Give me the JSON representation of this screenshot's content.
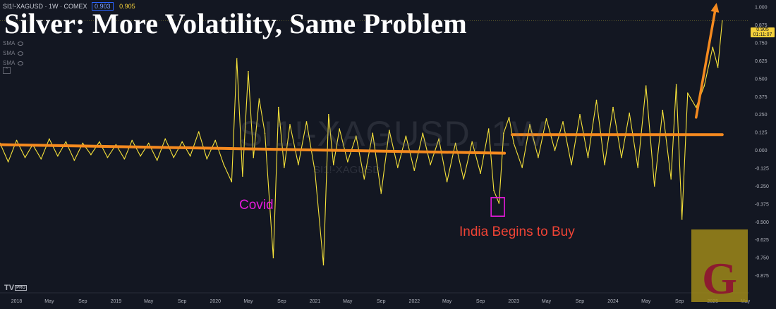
{
  "title": "Silver: More Volatility, Same Problem",
  "header": {
    "symbol": "SI1!-XAGUSD · 1W · COMEX",
    "value_box": "0.903",
    "last_value": "0.905"
  },
  "indicators": [
    "SMA",
    "SMA",
    "SMA"
  ],
  "watermark": {
    "main": "SI1!-XAGUSD, 1W",
    "sub": "SI1!-XAGUSD"
  },
  "annotations": {
    "covid": "Covid",
    "india": "India Begins to Buy"
  },
  "branding": {
    "tv_logo": "TV",
    "tv_pro": "PRO",
    "logo_letter": "G"
  },
  "price_badge": {
    "value": "0.905",
    "countdown": "01:11:07"
  },
  "colors": {
    "background": "#131722",
    "series": "#f6e23a",
    "trend": "#f58a1f",
    "covid": "#e31ad8",
    "india": "#ef4335",
    "logo_bg": "#a48c18",
    "logo_letter": "#8d1b2f"
  },
  "chart_data": {
    "type": "line",
    "title": "Silver: More Volatility, Same Problem",
    "series_label": "SI1!-XAGUSD",
    "x_unit": "date",
    "x_range": [
      "2017-11-01",
      "2025-05-15"
    ],
    "y_range": [
      -0.99,
      1.05
    ],
    "grid": false,
    "y_ticks": [
      1.0,
      0.875,
      0.75,
      0.625,
      0.5,
      0.375,
      0.25,
      0.125,
      0.0,
      -0.125,
      -0.25,
      -0.375,
      -0.5,
      -0.625,
      -0.75,
      -0.875
    ],
    "y_tick_labels": [
      "1.000",
      "0.875",
      "0.750",
      "0.625",
      "0.500",
      "0.375",
      "0.250",
      "0.125",
      "0.000",
      "-0.125",
      "-0.250",
      "-0.375",
      "-0.500",
      "-0.625",
      "-0.750",
      "-0.875"
    ],
    "x_ticks": [
      {
        "label": "2018",
        "date": "2018-01-01"
      },
      {
        "label": "May",
        "date": "2018-05-01"
      },
      {
        "label": "Sep",
        "date": "2018-09-01"
      },
      {
        "label": "2019",
        "date": "2019-01-01"
      },
      {
        "label": "May",
        "date": "2019-05-01"
      },
      {
        "label": "Sep",
        "date": "2019-09-01"
      },
      {
        "label": "2020",
        "date": "2020-01-01"
      },
      {
        "label": "May",
        "date": "2020-05-01"
      },
      {
        "label": "Sep",
        "date": "2020-09-01"
      },
      {
        "label": "2021",
        "date": "2021-01-01"
      },
      {
        "label": "May",
        "date": "2021-05-01"
      },
      {
        "label": "Sep",
        "date": "2021-09-01"
      },
      {
        "label": "2022",
        "date": "2022-01-01"
      },
      {
        "label": "May",
        "date": "2022-05-01"
      },
      {
        "label": "Sep",
        "date": "2022-09-01"
      },
      {
        "label": "2023",
        "date": "2023-01-01"
      },
      {
        "label": "May",
        "date": "2023-05-01"
      },
      {
        "label": "Sep",
        "date": "2023-09-01"
      },
      {
        "label": "2024",
        "date": "2024-01-01"
      },
      {
        "label": "May",
        "date": "2024-05-01"
      },
      {
        "label": "Sep",
        "date": "2024-09-01"
      },
      {
        "label": "2025",
        "date": "2025-01-01"
      },
      {
        "label": "May",
        "date": "2025-05-01"
      }
    ],
    "trend_lines": [
      {
        "from": {
          "date": "2017-11-01",
          "value": 0.04
        },
        "to": {
          "date": "2022-11-28",
          "value": -0.02
        }
      },
      {
        "from": {
          "date": "2022-12-26",
          "value": 0.11
        },
        "to": {
          "date": "2025-02-05",
          "value": 0.11
        }
      }
    ],
    "arrow": {
      "from": {
        "date": "2024-11-01",
        "value": 0.23
      },
      "to": {
        "date": "2025-01-15",
        "value": 1.03
      }
    },
    "highlight_box": {
      "date_from": "2022-10-10",
      "date_to": "2022-11-28",
      "value_top": -0.33,
      "value_bottom": -0.46
    },
    "last_value": 0.905,
    "series": [
      {
        "date": "2017-11-01",
        "value": 0.05
      },
      {
        "date": "2017-12-01",
        "value": -0.08
      },
      {
        "date": "2018-01-01",
        "value": 0.07
      },
      {
        "date": "2018-02-01",
        "value": -0.05
      },
      {
        "date": "2018-03-01",
        "value": 0.04
      },
      {
        "date": "2018-04-01",
        "value": -0.06
      },
      {
        "date": "2018-05-01",
        "value": 0.08
      },
      {
        "date": "2018-06-01",
        "value": -0.04
      },
      {
        "date": "2018-07-01",
        "value": 0.06
      },
      {
        "date": "2018-08-01",
        "value": -0.07
      },
      {
        "date": "2018-09-01",
        "value": 0.05
      },
      {
        "date": "2018-10-01",
        "value": -0.03
      },
      {
        "date": "2018-11-01",
        "value": 0.06
      },
      {
        "date": "2018-12-01",
        "value": -0.05
      },
      {
        "date": "2019-01-01",
        "value": 0.04
      },
      {
        "date": "2019-02-01",
        "value": -0.06
      },
      {
        "date": "2019-03-01",
        "value": 0.07
      },
      {
        "date": "2019-04-01",
        "value": -0.04
      },
      {
        "date": "2019-05-01",
        "value": 0.05
      },
      {
        "date": "2019-06-01",
        "value": -0.07
      },
      {
        "date": "2019-07-01",
        "value": 0.08
      },
      {
        "date": "2019-08-01",
        "value": -0.05
      },
      {
        "date": "2019-09-01",
        "value": 0.06
      },
      {
        "date": "2019-10-01",
        "value": -0.04
      },
      {
        "date": "2019-11-01",
        "value": 0.13
      },
      {
        "date": "2019-12-01",
        "value": -0.06
      },
      {
        "date": "2020-01-01",
        "value": 0.07
      },
      {
        "date": "2020-02-01",
        "value": -0.1
      },
      {
        "date": "2020-03-01",
        "value": -0.22
      },
      {
        "date": "2020-03-20",
        "value": 0.64
      },
      {
        "date": "2020-04-10",
        "value": -0.18
      },
      {
        "date": "2020-05-01",
        "value": 0.55
      },
      {
        "date": "2020-05-20",
        "value": -0.05
      },
      {
        "date": "2020-06-10",
        "value": 0.36
      },
      {
        "date": "2020-07-01",
        "value": 0.12
      },
      {
        "date": "2020-08-01",
        "value": -0.75
      },
      {
        "date": "2020-08-20",
        "value": 0.3
      },
      {
        "date": "2020-09-10",
        "value": -0.12
      },
      {
        "date": "2020-10-01",
        "value": 0.18
      },
      {
        "date": "2020-11-01",
        "value": -0.1
      },
      {
        "date": "2020-12-01",
        "value": 0.2
      },
      {
        "date": "2021-01-01",
        "value": -0.15
      },
      {
        "date": "2021-02-01",
        "value": -0.8
      },
      {
        "date": "2021-02-20",
        "value": 0.25
      },
      {
        "date": "2021-03-10",
        "value": -0.1
      },
      {
        "date": "2021-04-01",
        "value": 0.15
      },
      {
        "date": "2021-05-01",
        "value": -0.08
      },
      {
        "date": "2021-06-01",
        "value": 0.1
      },
      {
        "date": "2021-07-01",
        "value": -0.2
      },
      {
        "date": "2021-08-01",
        "value": 0.12
      },
      {
        "date": "2021-09-01",
        "value": -0.3
      },
      {
        "date": "2021-10-01",
        "value": 0.14
      },
      {
        "date": "2021-11-01",
        "value": -0.12
      },
      {
        "date": "2021-12-01",
        "value": 0.1
      },
      {
        "date": "2022-01-01",
        "value": -0.14
      },
      {
        "date": "2022-02-01",
        "value": 0.12
      },
      {
        "date": "2022-03-01",
        "value": -0.1
      },
      {
        "date": "2022-04-01",
        "value": 0.08
      },
      {
        "date": "2022-05-01",
        "value": -0.22
      },
      {
        "date": "2022-06-01",
        "value": 0.05
      },
      {
        "date": "2022-07-01",
        "value": -0.2
      },
      {
        "date": "2022-08-01",
        "value": 0.06
      },
      {
        "date": "2022-09-01",
        "value": -0.16
      },
      {
        "date": "2022-10-01",
        "value": 0.15
      },
      {
        "date": "2022-10-20",
        "value": -0.28
      },
      {
        "date": "2022-11-08",
        "value": -0.37
      },
      {
        "date": "2022-11-25",
        "value": 0.12
      },
      {
        "date": "2022-12-15",
        "value": 0.23
      },
      {
        "date": "2023-01-01",
        "value": 0.05
      },
      {
        "date": "2023-02-01",
        "value": -0.12
      },
      {
        "date": "2023-03-01",
        "value": 0.18
      },
      {
        "date": "2023-04-01",
        "value": -0.05
      },
      {
        "date": "2023-05-01",
        "value": 0.22
      },
      {
        "date": "2023-06-01",
        "value": 0.0
      },
      {
        "date": "2023-07-01",
        "value": 0.2
      },
      {
        "date": "2023-08-01",
        "value": -0.1
      },
      {
        "date": "2023-09-01",
        "value": 0.25
      },
      {
        "date": "2023-10-01",
        "value": -0.05
      },
      {
        "date": "2023-11-01",
        "value": 0.35
      },
      {
        "date": "2023-12-01",
        "value": -0.1
      },
      {
        "date": "2024-01-01",
        "value": 0.3
      },
      {
        "date": "2024-02-01",
        "value": -0.05
      },
      {
        "date": "2024-03-01",
        "value": 0.26
      },
      {
        "date": "2024-04-01",
        "value": -0.12
      },
      {
        "date": "2024-05-01",
        "value": 0.45
      },
      {
        "date": "2024-06-01",
        "value": -0.25
      },
      {
        "date": "2024-07-01",
        "value": 0.28
      },
      {
        "date": "2024-08-01",
        "value": -0.2
      },
      {
        "date": "2024-08-20",
        "value": 0.46
      },
      {
        "date": "2024-09-10",
        "value": -0.48
      },
      {
        "date": "2024-10-01",
        "value": 0.4
      },
      {
        "date": "2024-11-01",
        "value": 0.3
      },
      {
        "date": "2024-12-01",
        "value": 0.45
      },
      {
        "date": "2025-01-01",
        "value": 0.72
      },
      {
        "date": "2025-01-20",
        "value": 0.58
      },
      {
        "date": "2025-02-05",
        "value": 0.905
      }
    ]
  }
}
